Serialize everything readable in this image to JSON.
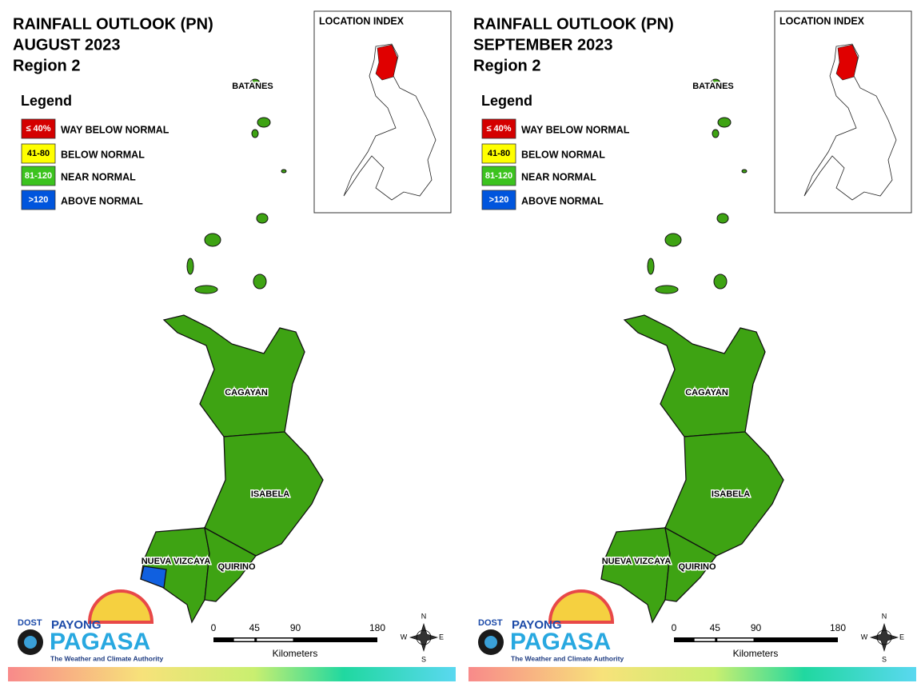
{
  "panels": [
    {
      "title": [
        "RAINFALL OUTLOOK (PN)",
        "AUGUST 2023",
        "Region 2"
      ],
      "legend": {
        "title": "Legend",
        "items": [
          {
            "swatch": "≤ 40%",
            "label": "WAY BELOW NORMAL",
            "color": "#d40000"
          },
          {
            "swatch": "41-80",
            "label": "BELOW NORMAL",
            "color": "#ffff00"
          },
          {
            "swatch": "81-120",
            "label": "NEAR NORMAL",
            "color": "#3cc31e"
          },
          {
            "swatch": ">120",
            "label": "ABOVE NORMAL",
            "color": "#0055dd"
          }
        ]
      },
      "location_index": "LOCATION INDEX",
      "provinces": [
        "BATANES",
        "CAGAYAN",
        "ISABELA",
        "NUEVA VIZCAYA",
        "QUIRINO"
      ],
      "scale": {
        "ticks": [
          0,
          45,
          90,
          180
        ],
        "unit": "Kilometers"
      },
      "compass": [
        "N",
        "E",
        "S",
        "W"
      ],
      "logo": {
        "agency": "DOST",
        "top": "PAYONG",
        "name": "PAGASA",
        "tagline": "The Weather and Climate Authority"
      }
    },
    {
      "title": [
        "RAINFALL OUTLOOK (PN)",
        "SEPTEMBER 2023",
        "Region 2"
      ],
      "legend": {
        "title": "Legend",
        "items": [
          {
            "swatch": "≤ 40%",
            "label": "WAY BELOW NORMAL",
            "color": "#d40000"
          },
          {
            "swatch": "41-80",
            "label": "BELOW NORMAL",
            "color": "#ffff00"
          },
          {
            "swatch": "81-120",
            "label": "NEAR NORMAL",
            "color": "#3cc31e"
          },
          {
            "swatch": ">120",
            "label": "ABOVE NORMAL",
            "color": "#0055dd"
          }
        ]
      },
      "location_index": "LOCATION INDEX",
      "provinces": [
        "BATANES",
        "CAGAYAN",
        "ISABELA",
        "NUEVA VIZCAYA",
        "QUIRINO"
      ],
      "scale": {
        "ticks": [
          0,
          45,
          90,
          180
        ],
        "unit": "Kilometers"
      },
      "compass": [
        "N",
        "E",
        "S",
        "W"
      ],
      "logo": {
        "agency": "DOST",
        "top": "PAYONG",
        "name": "PAGASA",
        "tagline": "The Weather and Climate Authority"
      }
    }
  ]
}
